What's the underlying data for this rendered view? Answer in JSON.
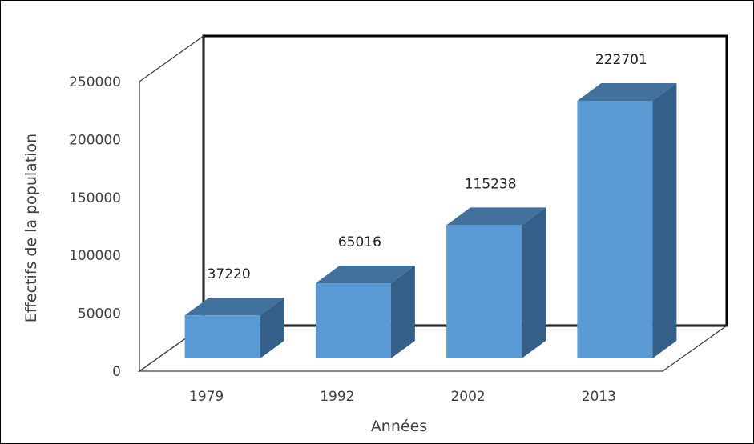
{
  "chart_data": {
    "type": "bar",
    "title": "",
    "xlabel": "Années",
    "ylabel": "Effectifs de la population",
    "categories": [
      "1979",
      "1992",
      "2002",
      "2013"
    ],
    "values": [
      37220,
      65016,
      115238,
      222701
    ],
    "data_labels": [
      "37220",
      "65016",
      "115238",
      "222701"
    ],
    "ylim": [
      0,
      250000
    ],
    "yticks": [
      "0",
      "50000",
      "100000",
      "150000",
      "200000",
      "250000"
    ],
    "grid": false,
    "legend": "none",
    "style": "3d-column",
    "colors": {
      "front": "#5b9bd5",
      "top": "#41719c",
      "side": "#335f88",
      "walls": "#000000",
      "floor": "#404040"
    }
  }
}
